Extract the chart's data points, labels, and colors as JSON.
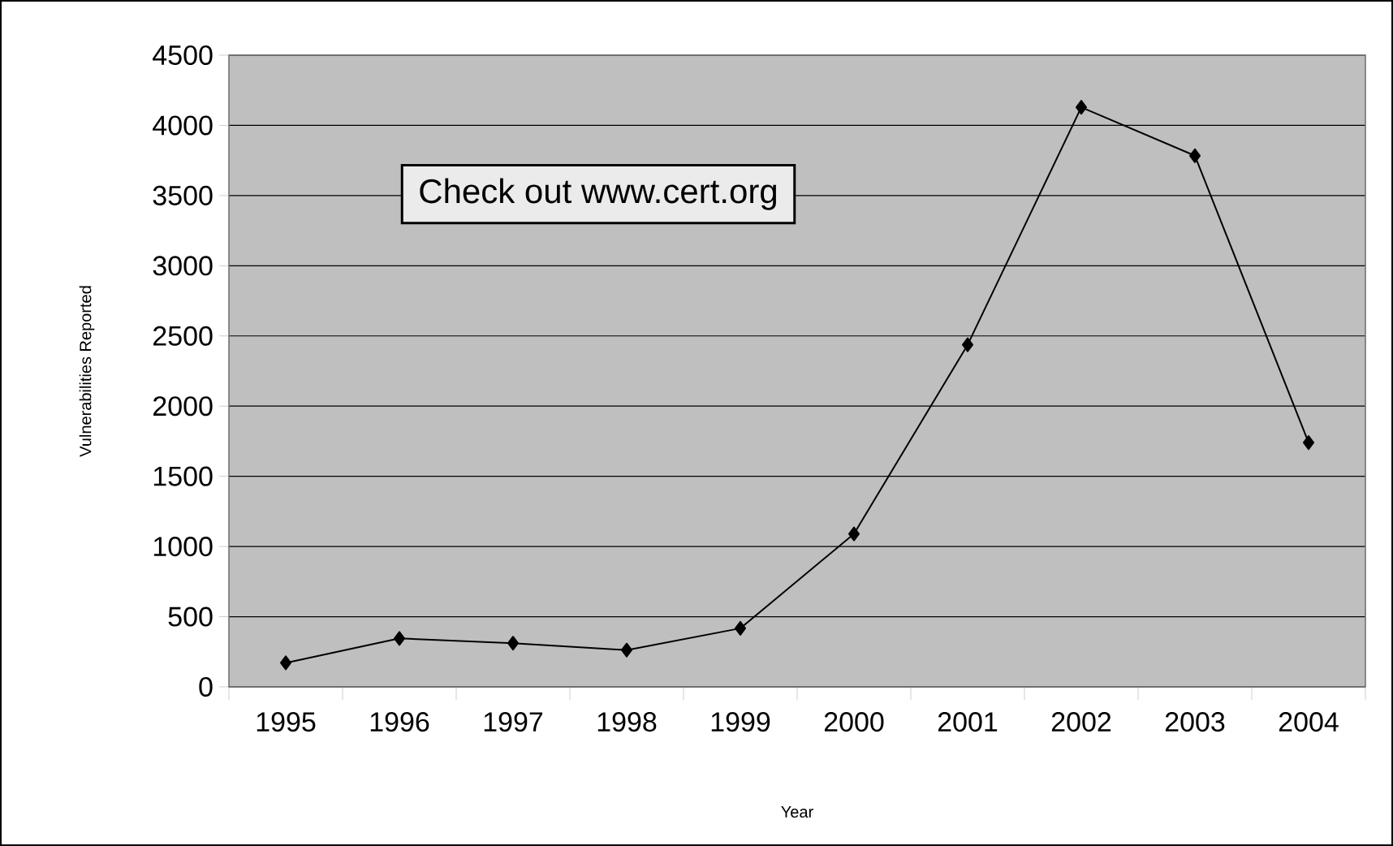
{
  "chart_data": {
    "type": "line",
    "xlabel": "Year",
    "ylabel": "Vulnerabilities Reported",
    "categories": [
      "1995",
      "1996",
      "1997",
      "1998",
      "1999",
      "2000",
      "2001",
      "2002",
      "2003",
      "2004"
    ],
    "series": [
      {
        "color": "#000000",
        "values": [
          171,
          345,
          311,
          262,
          417,
          1090,
          2437,
          4129,
          3784,
          1740
        ]
      }
    ],
    "ylim": [
      0,
      4500
    ],
    "yticks": [
      0,
      500,
      1000,
      1500,
      2000,
      2500,
      3000,
      3500,
      4000,
      4500
    ],
    "grid": "y",
    "marker": "diamond",
    "line_style": "solid",
    "annotations": [
      "Check out www.cert.org"
    ]
  }
}
